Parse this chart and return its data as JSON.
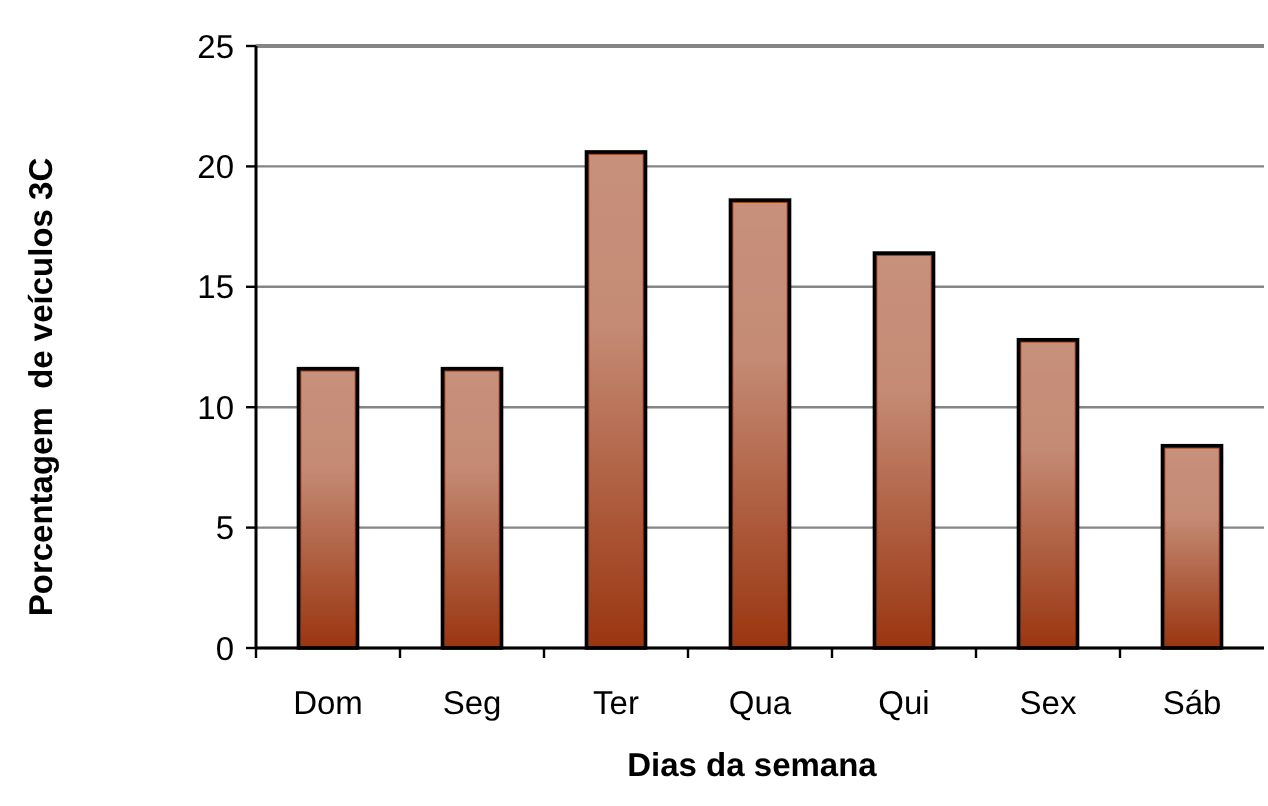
{
  "chart_data": {
    "type": "bar",
    "xlabel": "Dias da semana",
    "ylabel": "Porcentagem  de veículos 3C",
    "categories": [
      "Dom",
      "Seg",
      "Ter",
      "Qua",
      "Qui",
      "Sex",
      "Sáb"
    ],
    "values": [
      11.6,
      11.6,
      20.6,
      18.6,
      16.4,
      12.8,
      8.4
    ],
    "color": "#9a3610",
    "ylim": [
      0,
      25
    ],
    "yticks": [
      0,
      5,
      10,
      15,
      20,
      25
    ],
    "grid": "y"
  }
}
